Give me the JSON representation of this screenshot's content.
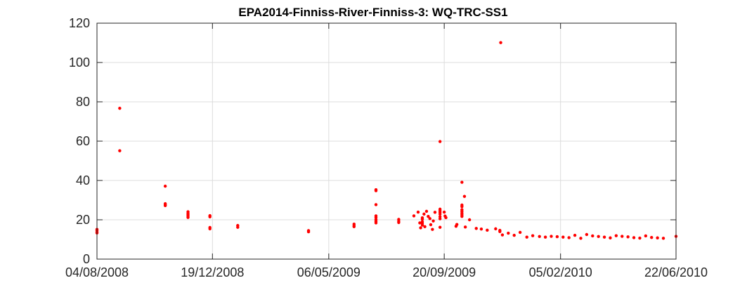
{
  "chart_data": {
    "type": "scatter",
    "title": "EPA2014-Finniss-River-Finniss-3: WQ-TRC-SS1",
    "xlabel": "",
    "ylabel": "",
    "x_axis": {
      "type": "date",
      "range": [
        "2008-08-04",
        "2010-06-22"
      ],
      "ticks": [
        "2008-08-04",
        "2008-12-19",
        "2009-05-06",
        "2009-09-20",
        "2010-02-05",
        "2010-06-22"
      ],
      "tick_labels": [
        "04/08/2008",
        "19/12/2008",
        "06/05/2009",
        "20/09/2009",
        "05/02/2010",
        "22/06/2010"
      ]
    },
    "y_axis": {
      "range": [
        0,
        120
      ],
      "ticks": [
        0,
        20,
        40,
        60,
        80,
        100,
        120
      ],
      "tick_labels": [
        "0",
        "20",
        "40",
        "60",
        "80",
        "100",
        "120"
      ]
    },
    "grid": true,
    "marker_color": "#ff0000",
    "series": [
      {
        "points": [
          [
            "2008-08-04",
            13.8
          ],
          [
            "2008-08-04",
            14.6
          ],
          [
            "2008-08-04",
            15.1
          ],
          [
            "2008-08-04",
            13.3
          ],
          [
            "2008-08-31",
            76.7
          ],
          [
            "2008-08-31",
            55.1
          ],
          [
            "2008-10-24",
            37.1
          ],
          [
            "2008-10-24",
            28.2
          ],
          [
            "2008-10-24",
            27.6
          ],
          [
            "2008-10-24",
            27.2
          ],
          [
            "2008-11-20",
            24.1
          ],
          [
            "2008-11-20",
            23.3
          ],
          [
            "2008-11-20",
            22.6
          ],
          [
            "2008-11-20",
            21.9
          ],
          [
            "2008-11-20",
            21.2
          ],
          [
            "2008-12-16",
            22.1
          ],
          [
            "2008-12-16",
            21.5
          ],
          [
            "2008-12-16",
            16.1
          ],
          [
            "2008-12-16",
            15.4
          ],
          [
            "2009-01-18",
            17.1
          ],
          [
            "2009-01-18",
            16.2
          ],
          [
            "2009-04-12",
            14.5
          ],
          [
            "2009-04-12",
            13.9
          ],
          [
            "2009-06-05",
            17.8
          ],
          [
            "2009-06-05",
            17.0
          ],
          [
            "2009-06-05",
            16.5
          ],
          [
            "2009-07-01",
            35.3
          ],
          [
            "2009-07-01",
            34.8
          ],
          [
            "2009-07-01",
            27.7
          ],
          [
            "2009-07-01",
            22.0
          ],
          [
            "2009-07-01",
            21.2
          ],
          [
            "2009-07-01",
            20.1
          ],
          [
            "2009-07-01",
            19.2
          ],
          [
            "2009-07-01",
            18.4
          ],
          [
            "2009-07-28",
            20.2
          ],
          [
            "2009-07-28",
            19.3
          ],
          [
            "2009-07-28",
            18.6
          ],
          [
            "2009-08-15",
            22.0
          ],
          [
            "2009-08-20",
            23.9
          ],
          [
            "2009-08-22",
            18.4
          ],
          [
            "2009-08-23",
            15.9
          ],
          [
            "2009-08-25",
            21.0
          ],
          [
            "2009-08-25",
            20.3
          ],
          [
            "2009-08-25",
            19.0
          ],
          [
            "2009-08-25",
            18.2
          ],
          [
            "2009-08-25",
            17.3
          ],
          [
            "2009-08-27",
            22.9
          ],
          [
            "2009-08-28",
            16.5
          ],
          [
            "2009-08-30",
            24.3
          ],
          [
            "2009-09-01",
            21.7
          ],
          [
            "2009-09-03",
            20.6
          ],
          [
            "2009-09-04",
            17.5
          ],
          [
            "2009-09-06",
            15.1
          ],
          [
            "2009-09-07",
            19.4
          ],
          [
            "2009-09-09",
            23.8
          ],
          [
            "2009-09-15",
            59.8
          ],
          [
            "2009-09-15",
            25.4
          ],
          [
            "2009-09-15",
            24.6
          ],
          [
            "2009-09-15",
            23.8
          ],
          [
            "2009-09-15",
            22.9
          ],
          [
            "2009-09-15",
            21.6
          ],
          [
            "2009-09-15",
            20.5
          ],
          [
            "2009-09-15",
            16.2
          ],
          [
            "2009-09-20",
            23.9
          ],
          [
            "2009-09-21",
            21.9
          ],
          [
            "2009-09-22",
            21.1
          ],
          [
            "2009-10-04",
            16.7
          ],
          [
            "2009-10-05",
            17.6
          ],
          [
            "2009-10-11",
            39.1
          ],
          [
            "2009-10-11",
            27.5
          ],
          [
            "2009-10-11",
            26.7
          ],
          [
            "2009-10-11",
            25.1
          ],
          [
            "2009-10-11",
            24.2
          ],
          [
            "2009-10-11",
            23.3
          ],
          [
            "2009-10-11",
            22.5
          ],
          [
            "2009-10-11",
            21.7
          ],
          [
            "2009-10-14",
            31.9
          ],
          [
            "2009-10-15",
            16.3
          ],
          [
            "2009-10-20",
            20.0
          ],
          [
            "2009-10-28",
            15.6
          ],
          [
            "2009-11-03",
            15.3
          ],
          [
            "2009-11-10",
            14.7
          ],
          [
            "2009-11-20",
            15.4
          ],
          [
            "2009-11-25",
            14.6
          ],
          [
            "2009-11-25",
            14.0
          ],
          [
            "2009-11-26",
            110.1
          ],
          [
            "2009-11-28",
            12.3
          ],
          [
            "2009-12-05",
            13.2
          ],
          [
            "2009-12-12",
            12.1
          ],
          [
            "2009-12-19",
            13.6
          ],
          [
            "2009-12-27",
            11.2
          ],
          [
            "2010-01-03",
            11.9
          ],
          [
            "2010-01-11",
            11.5
          ],
          [
            "2010-01-18",
            11.2
          ],
          [
            "2010-01-25",
            11.6
          ],
          [
            "2010-02-01",
            11.4
          ],
          [
            "2010-02-08",
            11.2
          ],
          [
            "2010-02-15",
            10.9
          ],
          [
            "2010-02-22",
            12.1
          ],
          [
            "2010-03-01",
            10.6
          ],
          [
            "2010-03-08",
            12.5
          ],
          [
            "2010-03-15",
            11.8
          ],
          [
            "2010-03-22",
            11.5
          ],
          [
            "2010-03-29",
            11.2
          ],
          [
            "2010-04-05",
            10.8
          ],
          [
            "2010-04-12",
            11.9
          ],
          [
            "2010-04-19",
            11.6
          ],
          [
            "2010-04-26",
            11.3
          ],
          [
            "2010-05-03",
            10.9
          ],
          [
            "2010-05-10",
            10.7
          ],
          [
            "2010-05-17",
            11.8
          ],
          [
            "2010-05-24",
            11.0
          ],
          [
            "2010-05-31",
            10.8
          ],
          [
            "2010-06-07",
            10.6
          ],
          [
            "2010-06-22",
            11.6
          ]
        ]
      }
    ]
  }
}
